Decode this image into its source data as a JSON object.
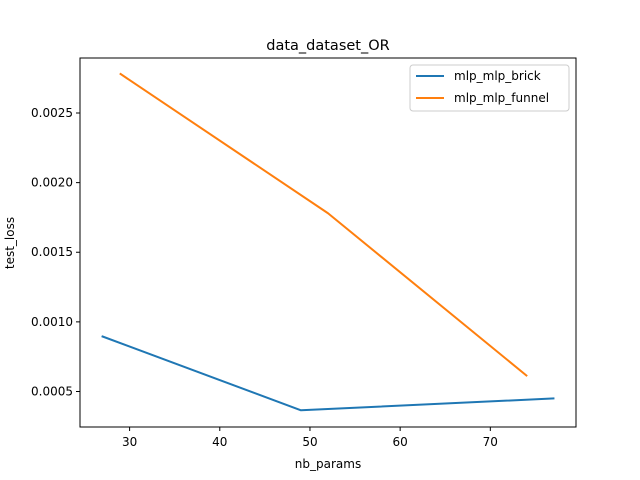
{
  "chart_data": {
    "type": "line",
    "title": "data_dataset_OR",
    "xlabel": "nb_params",
    "ylabel": "test_loss",
    "xlim": [
      24.5,
      79.5
    ],
    "ylim": [
      0.000245,
      0.002895
    ],
    "xticks": [
      30,
      40,
      50,
      60,
      70
    ],
    "xtick_labels": [
      "30",
      "40",
      "50",
      "60",
      "70"
    ],
    "yticks": [
      0.0005,
      0.001,
      0.0015,
      0.002,
      0.0025
    ],
    "ytick_labels": [
      "0.0005",
      "0.0010",
      "0.0015",
      "0.0020",
      "0.0025"
    ],
    "grid": false,
    "legend_position": "top-right",
    "series": [
      {
        "name": "mlp_mlp_brick",
        "color": "#1f77b4",
        "points": [
          [
            27,
            0.000895
          ],
          [
            49,
            0.000365
          ],
          [
            77,
            0.00045
          ]
        ]
      },
      {
        "name": "mlp_mlp_funnel",
        "color": "#ff7f0e",
        "points": [
          [
            29,
            0.00278
          ],
          [
            52,
            0.00178
          ],
          [
            74,
            0.000615
          ]
        ]
      }
    ]
  }
}
